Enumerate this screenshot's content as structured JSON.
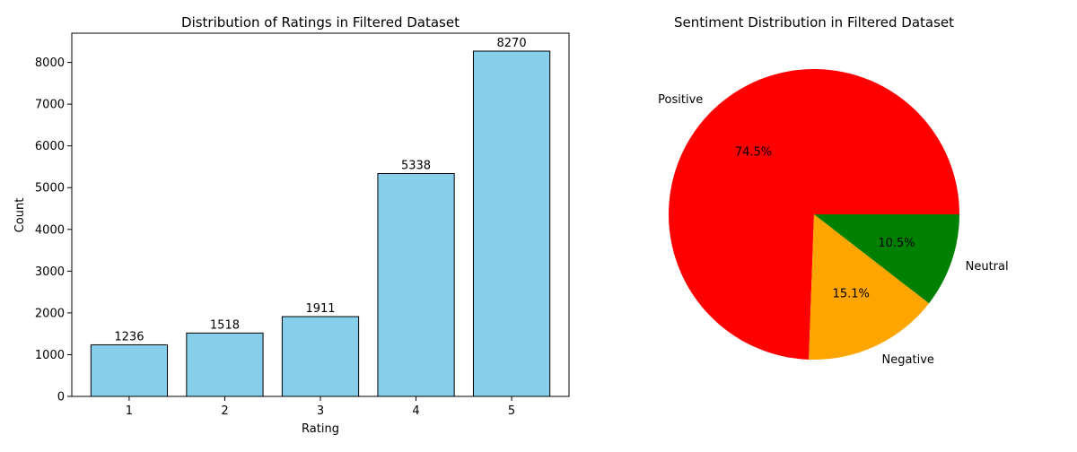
{
  "chart_data": [
    {
      "type": "bar",
      "title": "Distribution of Ratings in Filtered Dataset",
      "xlabel": "Rating",
      "ylabel": "Count",
      "categories": [
        "1",
        "2",
        "3",
        "4",
        "5"
      ],
      "values": [
        1236,
        1518,
        1911,
        5338,
        8270
      ],
      "data_labels": [
        "1236",
        "1518",
        "1911",
        "5338",
        "8270"
      ],
      "yticks": [
        0,
        1000,
        2000,
        3000,
        4000,
        5000,
        6000,
        7000,
        8000
      ],
      "ytick_labels": [
        "0",
        "1000",
        "2000",
        "3000",
        "4000",
        "5000",
        "6000",
        "7000",
        "8000"
      ],
      "ylim": [
        0,
        8700
      ],
      "grid": false,
      "bar_color": "#87ceeb",
      "edge_color": "#000000"
    },
    {
      "type": "pie",
      "title": "Sentiment Distribution in Filtered Dataset",
      "labels": [
        "Positive",
        "Negative",
        "Neutral"
      ],
      "values": [
        74.5,
        15.1,
        10.5
      ],
      "pct_labels": [
        "74.5%",
        "15.1%",
        "10.5%"
      ],
      "colors": [
        "#ff0000",
        "#ffa500",
        "#008000"
      ],
      "direction": "counterclockwise",
      "start_angle_deg": 0
    }
  ]
}
